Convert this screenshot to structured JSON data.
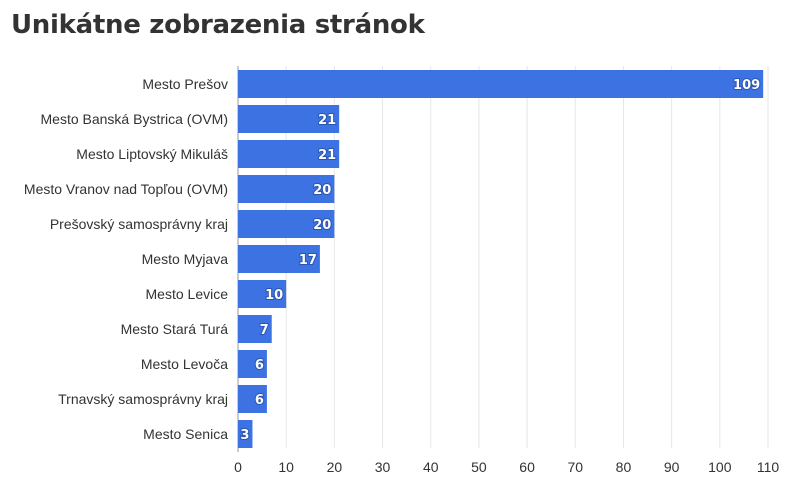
{
  "title": "Unikátne zobrazenia stránok",
  "colors": {
    "bar": "#3d72e3",
    "grid": "#e6e6e6",
    "axis": "#999999",
    "text": "#333333"
  },
  "chart_data": {
    "type": "bar",
    "orientation": "horizontal",
    "title": "Unikátne zobrazenia stránok",
    "categories": [
      "Mesto Prešov",
      "Mesto Banská Bystrica (OVM)",
      "Mesto Liptovský Mikuláš",
      "Mesto Vranov nad Topľou (OVM)",
      "Prešovský samosprávny kraj",
      "Mesto Myjava",
      "Mesto Levice",
      "Mesto Stará Turá",
      "Mesto Levoča",
      "Trnavský samosprávny kraj",
      "Mesto Senica"
    ],
    "values": [
      109,
      21,
      21,
      20,
      20,
      17,
      10,
      7,
      6,
      6,
      3
    ],
    "xlim": [
      0,
      110
    ],
    "xticks": [
      0,
      10,
      20,
      30,
      40,
      50,
      60,
      70,
      80,
      90,
      100,
      110
    ],
    "grid": true,
    "data_labels": true
  }
}
